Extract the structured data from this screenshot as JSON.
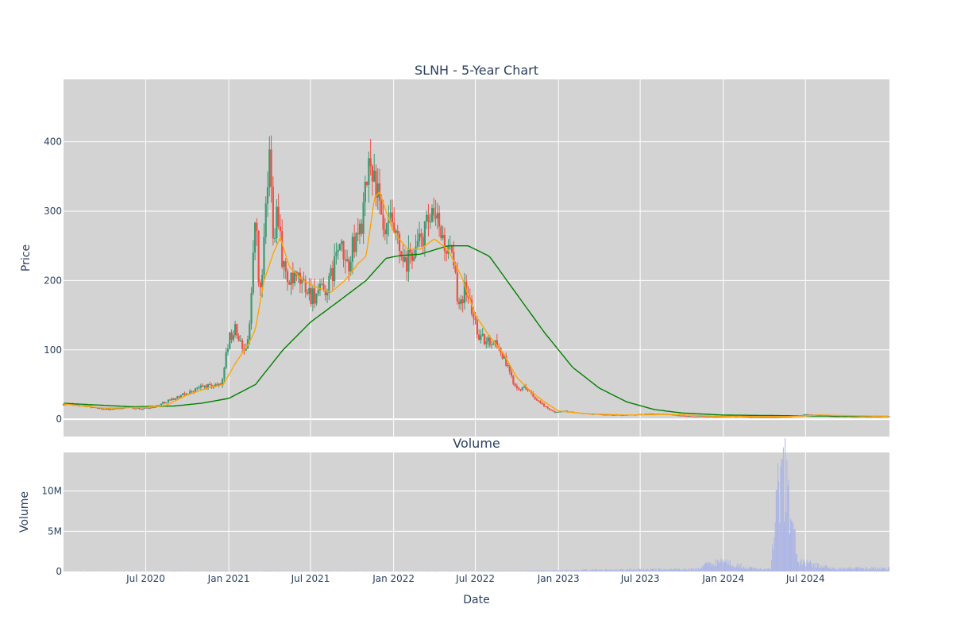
{
  "chart_data": [
    {
      "type": "candlestick",
      "title": "SLNH - 5-Year Chart",
      "xlabel": "",
      "ylabel": "Price",
      "ylim": [
        -25,
        490
      ],
      "y_ticks": [
        0,
        100,
        200,
        300,
        400
      ],
      "x_range": [
        "2020-01-01",
        "2025-01-03"
      ],
      "x_grid": [
        "2020-07-01",
        "2021-01-01",
        "2021-07-01",
        "2022-01-01",
        "2022-07-01",
        "2023-01-01",
        "2023-07-01",
        "2024-01-01",
        "2024-07-01"
      ],
      "grid": true,
      "colors": {
        "increasing": "#3d9970",
        "decreasing": "#ef4f43",
        "ma_short": "#ffa500",
        "ma_long": "#008000",
        "background": "#d3d3d3"
      },
      "price_close": [
        [
          "2020-01-01",
          22
        ],
        [
          "2020-02-15",
          20
        ],
        [
          "2020-03-15",
          16
        ],
        [
          "2020-04-15",
          14
        ],
        [
          "2020-05-20",
          17
        ],
        [
          "2020-06-20",
          15
        ],
        [
          "2020-07-20",
          18
        ],
        [
          "2020-08-20",
          27
        ],
        [
          "2020-09-15",
          33
        ],
        [
          "2020-10-10",
          40
        ],
        [
          "2020-11-01",
          47
        ],
        [
          "2020-11-25",
          48
        ],
        [
          "2020-12-15",
          50
        ],
        [
          "2021-01-01",
          115
        ],
        [
          "2021-01-15",
          130
        ],
        [
          "2021-02-01",
          100
        ],
        [
          "2021-02-15",
          120
        ],
        [
          "2021-03-01",
          300
        ],
        [
          "2021-03-10",
          170
        ],
        [
          "2021-03-20",
          250
        ],
        [
          "2021-04-01",
          380
        ],
        [
          "2021-04-10",
          270
        ],
        [
          "2021-04-20",
          310
        ],
        [
          "2021-05-01",
          220
        ],
        [
          "2021-05-15",
          195
        ],
        [
          "2021-06-01",
          200
        ],
        [
          "2021-06-15",
          195
        ],
        [
          "2021-07-01",
          180
        ],
        [
          "2021-07-20",
          180
        ],
        [
          "2021-08-10",
          190
        ],
        [
          "2021-09-01",
          250
        ],
        [
          "2021-09-20",
          220
        ],
        [
          "2021-10-10",
          260
        ],
        [
          "2021-10-25",
          290
        ],
        [
          "2021-11-10",
          380
        ],
        [
          "2021-11-25",
          330
        ],
        [
          "2021-12-10",
          260
        ],
        [
          "2021-12-25",
          280
        ],
        [
          "2022-01-10",
          250
        ],
        [
          "2022-01-25",
          215
        ],
        [
          "2022-02-10",
          240
        ],
        [
          "2022-02-25",
          250
        ],
        [
          "2022-03-10",
          270
        ],
        [
          "2022-03-25",
          285
        ],
        [
          "2022-04-10",
          280
        ],
        [
          "2022-04-25",
          250
        ],
        [
          "2022-05-10",
          230
        ],
        [
          "2022-05-25",
          170
        ],
        [
          "2022-06-10",
          190
        ],
        [
          "2022-06-25",
          150
        ],
        [
          "2022-07-10",
          120
        ],
        [
          "2022-07-25",
          110
        ],
        [
          "2022-08-10",
          115
        ],
        [
          "2022-08-25",
          100
        ],
        [
          "2022-09-10",
          75
        ],
        [
          "2022-09-25",
          50
        ],
        [
          "2022-10-10",
          45
        ],
        [
          "2022-10-25",
          45
        ],
        [
          "2022-11-10",
          28
        ],
        [
          "2022-11-25",
          22
        ],
        [
          "2022-12-10",
          14
        ],
        [
          "2022-12-25",
          10
        ],
        [
          "2023-01-10",
          12
        ],
        [
          "2023-02-01",
          10
        ],
        [
          "2023-03-01",
          8
        ],
        [
          "2023-04-01",
          7
        ],
        [
          "2023-05-01",
          6
        ],
        [
          "2023-06-01",
          6
        ],
        [
          "2023-07-01",
          7
        ],
        [
          "2023-08-01",
          8
        ],
        [
          "2023-09-01",
          7
        ],
        [
          "2023-10-01",
          5
        ],
        [
          "2023-11-01",
          4
        ],
        [
          "2023-12-01",
          4
        ],
        [
          "2024-01-01",
          4
        ],
        [
          "2024-02-01",
          4
        ],
        [
          "2024-03-01",
          3
        ],
        [
          "2024-04-01",
          3
        ],
        [
          "2024-05-01",
          3
        ],
        [
          "2024-06-01",
          4
        ],
        [
          "2024-07-01",
          7
        ],
        [
          "2024-08-01",
          6
        ],
        [
          "2024-09-01",
          4
        ],
        [
          "2024-10-01",
          4
        ],
        [
          "2024-11-01",
          4
        ],
        [
          "2024-12-01",
          4
        ],
        [
          "2025-01-03",
          4
        ]
      ],
      "ma_short": [
        [
          "2020-01-01",
          22
        ],
        [
          "2020-04-01",
          16
        ],
        [
          "2020-07-01",
          17
        ],
        [
          "2020-08-15",
          20
        ],
        [
          "2020-10-01",
          35
        ],
        [
          "2020-11-15",
          45
        ],
        [
          "2020-12-20",
          50
        ],
        [
          "2021-01-15",
          80
        ],
        [
          "2021-02-15",
          110
        ],
        [
          "2021-03-01",
          130
        ],
        [
          "2021-03-20",
          200
        ],
        [
          "2021-04-10",
          240
        ],
        [
          "2021-04-25",
          262
        ],
        [
          "2021-05-15",
          220
        ],
        [
          "2021-06-15",
          200
        ],
        [
          "2021-07-15",
          190
        ],
        [
          "2021-08-15",
          183
        ],
        [
          "2021-09-15",
          200
        ],
        [
          "2021-10-15",
          225
        ],
        [
          "2021-11-01",
          235
        ],
        [
          "2021-11-20",
          320
        ],
        [
          "2021-12-01",
          328
        ],
        [
          "2021-12-15",
          300
        ],
        [
          "2022-01-01",
          270
        ],
        [
          "2022-02-01",
          245
        ],
        [
          "2022-03-01",
          245
        ],
        [
          "2022-04-01",
          260
        ],
        [
          "2022-05-01",
          245
        ],
        [
          "2022-06-01",
          205
        ],
        [
          "2022-07-01",
          150
        ],
        [
          "2022-08-01",
          120
        ],
        [
          "2022-09-01",
          95
        ],
        [
          "2022-10-01",
          60
        ],
        [
          "2022-11-01",
          40
        ],
        [
          "2022-12-01",
          25
        ],
        [
          "2023-01-01",
          12
        ],
        [
          "2023-03-01",
          8
        ],
        [
          "2023-06-01",
          6
        ],
        [
          "2023-09-01",
          7
        ],
        [
          "2024-01-01",
          4
        ],
        [
          "2024-06-01",
          4
        ],
        [
          "2024-08-01",
          6
        ],
        [
          "2025-01-03",
          4
        ]
      ],
      "ma_long": [
        [
          "2020-01-01",
          23
        ],
        [
          "2020-03-01",
          21
        ],
        [
          "2020-06-01",
          18
        ],
        [
          "2020-09-01",
          19
        ],
        [
          "2020-11-01",
          23
        ],
        [
          "2021-01-01",
          30
        ],
        [
          "2021-03-01",
          50
        ],
        [
          "2021-05-01",
          100
        ],
        [
          "2021-07-01",
          140
        ],
        [
          "2021-09-01",
          170
        ],
        [
          "2021-11-01",
          200
        ],
        [
          "2021-12-15",
          232
        ],
        [
          "2022-01-15",
          236
        ],
        [
          "2022-03-01",
          238
        ],
        [
          "2022-05-01",
          250
        ],
        [
          "2022-06-15",
          250
        ],
        [
          "2022-08-01",
          235
        ],
        [
          "2022-10-01",
          180
        ],
        [
          "2022-12-01",
          125
        ],
        [
          "2023-02-01",
          75
        ],
        [
          "2023-04-01",
          45
        ],
        [
          "2023-06-01",
          25
        ],
        [
          "2023-08-01",
          14
        ],
        [
          "2023-10-01",
          9
        ],
        [
          "2024-01-01",
          6
        ],
        [
          "2024-06-01",
          5
        ],
        [
          "2025-01-03",
          4
        ]
      ]
    },
    {
      "type": "bar",
      "title": "Volume",
      "xlabel": "Date",
      "ylabel": "Volume",
      "ylim": [
        0,
        14800000
      ],
      "y_ticks": [
        0,
        5000000,
        10000000
      ],
      "y_tick_labels": [
        "0",
        "5M",
        "10M"
      ],
      "x_tick_labels": [
        "Jul 2020",
        "Jan 2021",
        "Jul 2021",
        "Jan 2022",
        "Jul 2022",
        "Jan 2023",
        "Jul 2023",
        "Jan 2024",
        "Jul 2024"
      ],
      "x_ticks": [
        "2020-07-01",
        "2021-01-01",
        "2021-07-01",
        "2022-01-01",
        "2022-07-01",
        "2023-01-01",
        "2023-07-01",
        "2024-01-01",
        "2024-07-01"
      ],
      "color": "#aab4e6",
      "volume": [
        [
          "2020-01-01",
          30000
        ],
        [
          "2020-07-01",
          40000
        ],
        [
          "2021-01-01",
          60000
        ],
        [
          "2021-07-01",
          60000
        ],
        [
          "2022-01-01",
          50000
        ],
        [
          "2022-07-01",
          60000
        ],
        [
          "2022-12-01",
          100000
        ],
        [
          "2023-03-01",
          200000
        ],
        [
          "2023-07-01",
          250000
        ],
        [
          "2023-11-01",
          300000
        ],
        [
          "2023-12-20",
          1400000
        ],
        [
          "2024-03-01",
          400000
        ],
        [
          "2024-04-15",
          300000
        ],
        [
          "2024-05-10",
          14000000
        ],
        [
          "2024-06-15",
          1200000
        ],
        [
          "2024-09-01",
          400000
        ],
        [
          "2025-01-03",
          400000
        ]
      ]
    }
  ]
}
